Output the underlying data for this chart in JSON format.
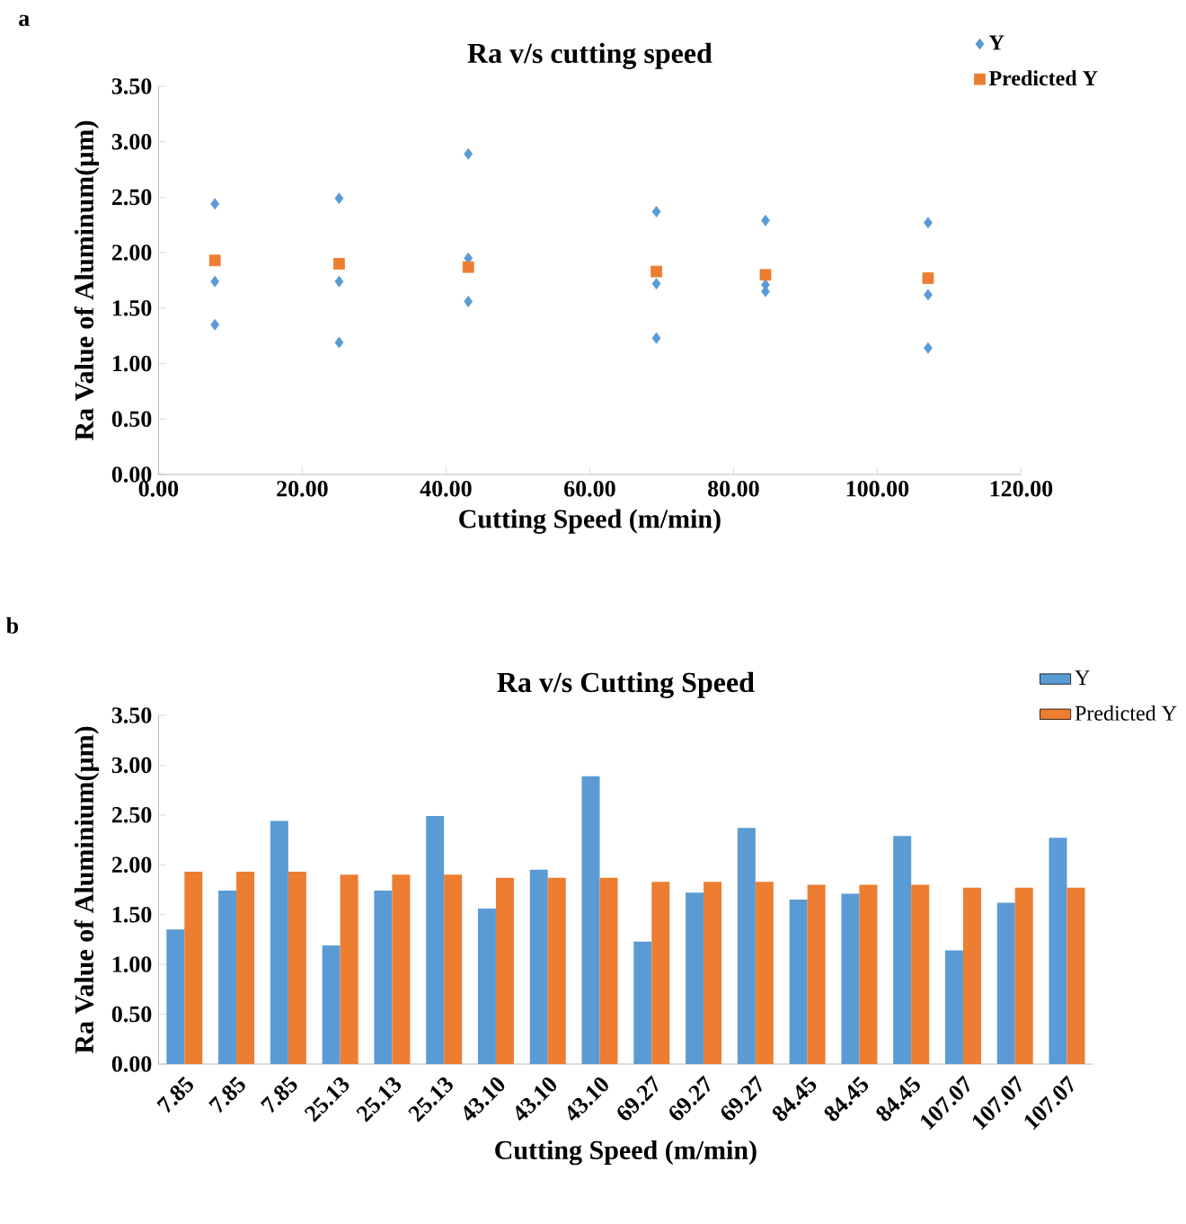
{
  "chart_data": [
    {
      "type": "scatter",
      "title": "Ra v/s cutting speed",
      "xlabel": "Cutting Speed (m/min)",
      "ylabel": "Ra Value of Aluminum(µm)",
      "annotations": [
        "a"
      ],
      "legend": "top right",
      "xlim": [
        0,
        120
      ],
      "xticks": [
        {
          "value": 0,
          "label": "0.00"
        },
        {
          "value": 20,
          "label": "20.00"
        },
        {
          "value": 40,
          "label": "40.00"
        },
        {
          "value": 60,
          "label": "60.00"
        },
        {
          "value": 80,
          "label": "80.00"
        },
        {
          "value": 100,
          "label": "100.00"
        },
        {
          "value": 120,
          "label": "120.00"
        }
      ],
      "ylim": [
        0,
        3.5
      ],
      "yticks": [
        {
          "value": 0,
          "label": "0.00"
        },
        {
          "value": 0.5,
          "label": "0.50"
        },
        {
          "value": 1,
          "label": "1.00"
        },
        {
          "value": 1.5,
          "label": "1.50"
        },
        {
          "value": 2,
          "label": "2.00"
        },
        {
          "value": 2.5,
          "label": "2.50"
        },
        {
          "value": 3,
          "label": "3.00"
        },
        {
          "value": 3.5,
          "label": "3.50"
        }
      ],
      "series": [
        {
          "name": "Y",
          "color": "#5b9bd5",
          "marker": "diamond",
          "x": [
            7.85,
            7.85,
            7.85,
            25.13,
            25.13,
            25.13,
            43.1,
            43.1,
            43.1,
            69.27,
            69.27,
            69.27,
            84.45,
            84.45,
            84.45,
            107.07,
            107.07,
            107.07
          ],
          "values": [
            1.35,
            1.74,
            2.44,
            1.19,
            1.74,
            2.49,
            1.56,
            1.95,
            2.89,
            1.23,
            1.72,
            2.37,
            1.65,
            1.71,
            2.29,
            1.14,
            1.62,
            2.27
          ]
        },
        {
          "name": "Predicted Y",
          "color": "#ed7d31",
          "marker": "square",
          "x": [
            7.85,
            25.13,
            43.1,
            69.27,
            84.45,
            107.07
          ],
          "values": [
            1.93,
            1.9,
            1.87,
            1.83,
            1.8,
            1.77
          ]
        }
      ]
    },
    {
      "type": "bar",
      "title": "Ra v/s Cutting Speed",
      "xlabel": "Cutting Speed (m/min)",
      "ylabel": "Ra Value of Aluminium(µm)",
      "annotations": [
        "b"
      ],
      "legend": "top right",
      "categories": [
        "7.85",
        "7.85",
        "7.85",
        "25.13",
        "25.13",
        "25.13",
        "43.10",
        "43.10",
        "43.10",
        "69.27",
        "69.27",
        "69.27",
        "84.45",
        "84.45",
        "84.45",
        "107.07",
        "107.07",
        "107.07"
      ],
      "ylim": [
        0,
        3.5
      ],
      "yticks": [
        {
          "value": 0,
          "label": "0.00"
        },
        {
          "value": 0.5,
          "label": "0.50"
        },
        {
          "value": 1,
          "label": "1.00"
        },
        {
          "value": 1.5,
          "label": "1.50"
        },
        {
          "value": 2,
          "label": "2.00"
        },
        {
          "value": 2.5,
          "label": "2.50"
        },
        {
          "value": 3,
          "label": "3.00"
        },
        {
          "value": 3.5,
          "label": "3.50"
        }
      ],
      "series": [
        {
          "name": "Y",
          "color": "#5b9bd5",
          "values": [
            1.35,
            1.74,
            2.44,
            1.19,
            1.74,
            2.49,
            1.56,
            1.95,
            2.89,
            1.23,
            1.72,
            2.37,
            1.65,
            1.71,
            2.29,
            1.14,
            1.62,
            2.27
          ]
        },
        {
          "name": "Predicted Y",
          "color": "#ed7d31",
          "values": [
            1.93,
            1.93,
            1.93,
            1.9,
            1.9,
            1.9,
            1.87,
            1.87,
            1.87,
            1.83,
            1.83,
            1.83,
            1.8,
            1.8,
            1.8,
            1.77,
            1.77,
            1.77
          ]
        }
      ]
    }
  ]
}
